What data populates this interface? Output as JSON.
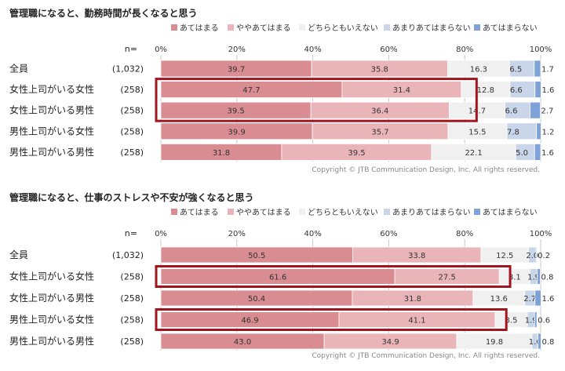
{
  "colors": {
    "s1": "#d98c92",
    "s2": "#eab5b9",
    "s3": "#f0f0f0",
    "s4": "#c9d6ea",
    "s5": "#7fa3d8",
    "highlight": "#a3151e",
    "grid": "#c8c8c8"
  },
  "legend": [
    "あてはまる",
    "ややあてはまる",
    "どちらともいえない",
    "あまりあてはまらない",
    "あてはまらない"
  ],
  "n_label": "n=",
  "axis_ticks": [
    "0%",
    "20%",
    "40%",
    "60%",
    "80%",
    "100%"
  ],
  "copyright": "Copyright © JTB Communication Design, Inc. All rights reserved.",
  "chart_data": [
    {
      "type": "bar",
      "stacked": true,
      "orientation": "horizontal",
      "title": "管理職になると、勤務時間が長くなると思う",
      "categories": [
        "全員",
        "女性上司がいる女性",
        "女性上司がいる男性",
        "男性上司がいる女性",
        "男性上司がいる男性"
      ],
      "n": [
        "(1,032)",
        "(258)",
        "(258)",
        "(258)",
        "(258)"
      ],
      "xlim": [
        0,
        100
      ],
      "series": [
        {
          "name": "あてはまる",
          "values": [
            39.7,
            47.7,
            39.5,
            39.9,
            31.8
          ]
        },
        {
          "name": "ややあてはまる",
          "values": [
            35.8,
            31.4,
            36.4,
            35.7,
            39.5
          ]
        },
        {
          "name": "どちらともいえない",
          "values": [
            16.3,
            12.8,
            14.7,
            15.5,
            22.1
          ]
        },
        {
          "name": "あまりあてはまらない",
          "values": [
            6.5,
            6.6,
            6.6,
            7.8,
            5.0
          ]
        },
        {
          "name": "あてはまらない",
          "values": [
            1.7,
            1.6,
            2.7,
            1.2,
            1.6
          ]
        }
      ],
      "highlighted_rows": [
        [
          1,
          2
        ]
      ]
    },
    {
      "type": "bar",
      "stacked": true,
      "orientation": "horizontal",
      "title": "管理職になると、仕事のストレスや不安が強くなると思う",
      "categories": [
        "全員",
        "女性上司がいる女性",
        "女性上司がいる男性",
        "男性上司がいる女性",
        "男性上司がいる男性"
      ],
      "n": [
        "(1,032)",
        "(258)",
        "(258)",
        "(258)",
        "(258)"
      ],
      "xlim": [
        0,
        100
      ],
      "series": [
        {
          "name": "あてはまる",
          "values": [
            50.5,
            61.6,
            50.4,
            46.9,
            43.0
          ]
        },
        {
          "name": "ややあてはまる",
          "values": [
            33.8,
            27.5,
            31.8,
            41.1,
            34.9
          ]
        },
        {
          "name": "どちらともいえない",
          "values": [
            12.5,
            8.1,
            13.6,
            8.5,
            19.8
          ]
        },
        {
          "name": "あまりあてはまらない",
          "values": [
            2.0,
            1.9,
            2.7,
            1.9,
            1.6
          ]
        },
        {
          "name": "あてはまらない",
          "values": [
            0.2,
            0.8,
            1.6,
            0.6,
            0.8
          ]
        }
      ],
      "highlighted_rows": [
        [
          1,
          1
        ],
        [
          3,
          3
        ]
      ]
    }
  ]
}
